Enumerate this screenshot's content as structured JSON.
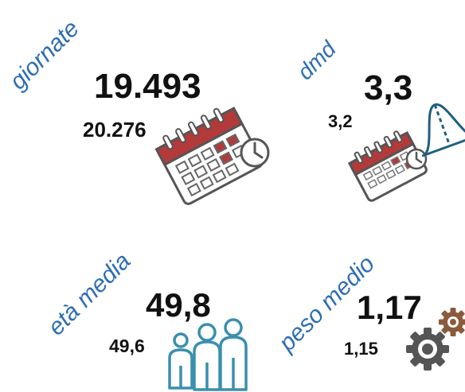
{
  "kpis": {
    "giornate": {
      "label": "giornate",
      "value": "19.493",
      "previous": "20.276",
      "icon": "calendar-clock-icon"
    },
    "dmd": {
      "label": "dmd",
      "value": "3,3",
      "previous": "3,2",
      "icon": "calendar-bellcurve-icon"
    },
    "eta_media": {
      "label": "età media",
      "value": "49,8",
      "previous": "49,6",
      "icon": "people-icon"
    },
    "peso_medio": {
      "label": "peso medio",
      "value": "1,17",
      "previous": "1,15",
      "icon": "gears-icon"
    }
  },
  "colors": {
    "label": "#2e6db4",
    "calendar_red": "#b33a3a",
    "people_blue": "#3a8fae",
    "gear_dark": "#555555",
    "gear_brown": "#8a5a3c"
  }
}
